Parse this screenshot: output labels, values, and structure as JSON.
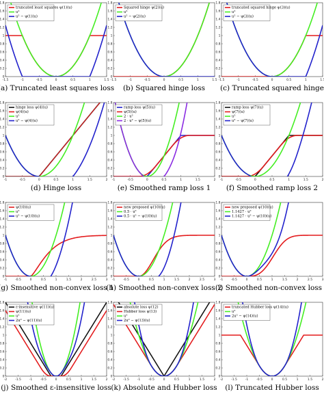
{
  "colors": {
    "red": "#e31a1c",
    "green": "#44ee22",
    "blue": "#2222cc",
    "black": "#111111",
    "purple": "#8a2be2",
    "dark": "#0b3d4f"
  },
  "chart_data": [
    {
      "type": "line",
      "caption": "(a) Truncated least squares loss",
      "xlim": [
        -1.5,
        1.5
      ],
      "ylim": [
        0,
        1.8
      ],
      "xticks": [
        -1.5,
        -1,
        -0.5,
        0,
        0.5,
        1,
        1.5
      ],
      "legend": [
        "truncated least squares ψ(1)(u)",
        "u²",
        "u² − ψ(1)(u)"
      ],
      "series": [
        {
          "name": "truncated least squares ψ(1)(u)",
          "color": "#e31a1c",
          "fn": "tls",
          "params": {
            "t": 1
          }
        },
        {
          "name": "u²",
          "color": "#44ee22",
          "fn": "sq"
        },
        {
          "name": "u² − ψ(1)(u)",
          "color": "#2222cc",
          "fn": "sqmtls",
          "params": {
            "t": 1
          }
        }
      ]
    },
    {
      "type": "line",
      "caption": "(b) Squared hinge loss",
      "xlim": [
        -1.5,
        1.5
      ],
      "ylim": [
        0,
        1.8
      ],
      "xticks": [
        -1.5,
        -1,
        -0.5,
        0,
        0.5,
        1,
        1.5
      ],
      "legend": [
        "Squared hinge ψ(2)(u)",
        "u²",
        "u² − ψ(2)(u)"
      ],
      "series": [
        {
          "name": "Squared hinge ψ(2)(u)",
          "color": "#e31a1c",
          "fn": "sqhinge"
        },
        {
          "name": "u²",
          "color": "#44ee22",
          "fn": "sq"
        },
        {
          "name": "u² − ψ(2)(u)",
          "color": "#2222cc",
          "fn": "sqmsqhinge"
        }
      ]
    },
    {
      "type": "line",
      "caption": "(c) Truncated squared hinge",
      "xlim": [
        -1.5,
        1.5
      ],
      "ylim": [
        0,
        1.8
      ],
      "xticks": [
        -1.5,
        -1,
        -0.5,
        0,
        0.5,
        1,
        1.5
      ],
      "legend": [
        "truncated squared hinge ψ(3)(u)",
        "u²",
        "u² − ψ(3)(u)"
      ],
      "series": [
        {
          "name": "truncated squared hinge ψ(3)(u)",
          "color": "#e31a1c",
          "fn": "tsqhinge"
        },
        {
          "name": "u²",
          "color": "#44ee22",
          "fn": "sq"
        },
        {
          "name": "u² − ψ(3)(u)",
          "color": "#2222cc",
          "fn": "sqmtsqhinge"
        }
      ]
    },
    {
      "type": "line",
      "caption": "(d) Hinge loss",
      "xlim": [
        -1,
        2
      ],
      "ylim": [
        0,
        1.8
      ],
      "xticks": [
        -1,
        -0.5,
        0,
        0.5,
        1,
        1.5,
        2
      ],
      "legend": [
        "hinge loss ψ(4)(u)",
        "ψ(4)(u)",
        "u²",
        "u² − ψ(4)(u)"
      ],
      "series": [
        {
          "name": "hinge loss ψ(4)(u)",
          "color": "#111111",
          "fn": "hinge"
        },
        {
          "name": "ψ(4)(u)",
          "color": "#e31a1c",
          "fn": "hinge",
          "width": 1.1
        },
        {
          "name": "u²",
          "color": "#44ee22",
          "fn": "sq"
        },
        {
          "name": "u² − ψ(4)(u)",
          "color": "#2222cc",
          "fn": "sqmhinge"
        }
      ]
    },
    {
      "type": "line",
      "caption": "(e) Smoothed ramp loss 1",
      "xlim": [
        -1,
        2
      ],
      "ylim": [
        0,
        1.8
      ],
      "xticks": [
        -1,
        -0.5,
        0,
        0.5,
        1,
        1.5,
        2
      ],
      "legend": [
        "ramp loss ψ(5)(u)",
        "ψ(5)(u)",
        "2 · u²",
        "2 · u² − ψ(5)(u)"
      ],
      "series": [
        {
          "name": "ramp loss ψ(5)(u)",
          "color": "#2222cc",
          "fn": "ramp",
          "params": {
            "b": 1
          }
        },
        {
          "name": "ψ(5)(u)",
          "color": "#e31a1c",
          "fn": "smoothramp",
          "params": {
            "b": 1
          }
        },
        {
          "name": "2 · u²",
          "color": "#44ee22",
          "fn": "sq2"
        },
        {
          "name": "2 · u² − ψ(5)(u)",
          "color": "#8a2be2",
          "fn": "sq2mramp"
        }
      ]
    },
    {
      "type": "line",
      "caption": "(f) Smoothed ramp loss 2",
      "xlim": [
        -1,
        2
      ],
      "ylim": [
        0,
        1.8
      ],
      "xticks": [
        -1,
        -0.5,
        0,
        0.5,
        1,
        1.5,
        2
      ],
      "legend": [
        "ramp loss ψ(7)(u)",
        "ψ(7)(u)",
        "u²",
        "u² − ψ(7)(u)"
      ],
      "series": [
        {
          "name": "ramp loss ψ(7)(u)",
          "color": "#111111",
          "fn": "ramp",
          "params": {
            "b": 1
          }
        },
        {
          "name": "ψ(7)(u)",
          "color": "#e31a1c",
          "fn": "smoothramp",
          "params": {
            "b": 1
          }
        },
        {
          "name": "u²",
          "color": "#44ee22",
          "fn": "sq"
        },
        {
          "name": "u² − ψ(7)(u)",
          "color": "#2222cc",
          "fn": "sqmsmoothramp"
        }
      ]
    },
    {
      "type": "line",
      "caption": "(g) Smoothed non-convex loss 1",
      "xlim": [
        -1,
        3
      ],
      "ylim": [
        0,
        1.8
      ],
      "xticks": [
        -1,
        -0.5,
        0,
        0.5,
        1,
        1.5,
        2,
        2.5,
        3
      ],
      "legend": [
        "ψ(10)(u)",
        "u²",
        "u² − ψ(10)(u)"
      ],
      "series": [
        {
          "name": "ψ(10)(u)",
          "color": "#e31a1c",
          "fn": "ncv",
          "params": {
            "s": 0.8,
            "p": 1.3,
            "c": 1
          }
        },
        {
          "name": "u²",
          "color": "#44ee22",
          "fn": "sq"
        },
        {
          "name": "u² − ψ(10)(u)",
          "color": "#2222cc",
          "fn": "sqmncv",
          "params": {
            "s": 0.8,
            "p": 1.3,
            "c": 1
          }
        }
      ]
    },
    {
      "type": "line",
      "caption": "(h) Smoothed non-convex loss 2",
      "xlim": [
        -1,
        3
      ],
      "ylim": [
        0,
        1.8
      ],
      "xticks": [
        -1,
        -0.5,
        0,
        0.5,
        1,
        1.5,
        2,
        2.5,
        3
      ],
      "legend": [
        "new proposed ψ(10)(u)",
        "0.5 · u²",
        "0.5 · u² − ψ(10)(u)"
      ],
      "series": [
        {
          "name": "new proposed ψ(10)(u)",
          "color": "#e31a1c",
          "fn": "ncv",
          "params": {
            "s": 0.8,
            "p": 2,
            "c": 1
          }
        },
        {
          "name": "0.5 · u²",
          "color": "#44ee22",
          "fn": "sq"
        },
        {
          "name": "0.5 · u² − ψ(10)(u)",
          "color": "#2222cc",
          "fn": "sqmncv",
          "params": {
            "s": 0.8,
            "p": 2,
            "c": 1
          }
        }
      ]
    },
    {
      "type": "line",
      "caption": "(i) Smoothed non-convex loss 3",
      "xlim": [
        -1,
        3
      ],
      "ylim": [
        0,
        1.8
      ],
      "xticks": [
        -1,
        -0.5,
        0,
        0.5,
        1,
        1.5,
        2,
        2.5,
        3
      ],
      "legend": [
        "new proposed ψ(10)(u)",
        "1.1427 · u²",
        "1.1427 · u² − ψ(10)(u)"
      ],
      "series": [
        {
          "name": "new proposed ψ(10)(u)",
          "color": "#e31a1c",
          "fn": "ncv",
          "params": {
            "s": 1.2,
            "p": 3,
            "c": 1
          }
        },
        {
          "name": "1.1427 · u²",
          "color": "#44ee22",
          "fn": "sq"
        },
        {
          "name": "1.1427 · u² − ψ(10)(u)",
          "color": "#2222cc",
          "fn": "sqmncv",
          "params": {
            "s": 1.2,
            "p": 3,
            "c": 1
          }
        }
      ]
    },
    {
      "type": "line",
      "caption": "(j) Smoothed ε-insensitive loss",
      "xlim": [
        -2,
        2
      ],
      "ylim": [
        0,
        1.8
      ],
      "xticks": [
        -2,
        -1.5,
        -1,
        -0.5,
        0,
        0.5,
        1,
        1.5,
        2
      ],
      "legend": [
        "ε-insensitive ψ(11)(u)",
        "ψ(11)(u)",
        "u²",
        "2u² − ψ(11)(u)"
      ],
      "series": [
        {
          "name": "ε-insensitive ψ(11)(u)",
          "color": "#111111",
          "fn": "epsins",
          "params": {
            "e": 0.2
          }
        },
        {
          "name": "ψ(11)(u)",
          "color": "#e31a1c",
          "fn": "smootheps",
          "params": {
            "e": 0.2
          }
        },
        {
          "name": "u²",
          "color": "#44ee22",
          "fn": "sq2"
        },
        {
          "name": "2u² − ψ(11)(u)",
          "color": "#2222cc",
          "fn": "sq2meps",
          "params": {
            "e": 0.2
          }
        }
      ]
    },
    {
      "type": "line",
      "caption": "(k) Absolute and Hubber loss",
      "xlim": [
        -2,
        2
      ],
      "ylim": [
        0,
        1.8
      ],
      "xticks": [
        -2,
        -1.5,
        -1,
        -0.5,
        0,
        0.5,
        1,
        1.5,
        2
      ],
      "legend": [
        "absolute loss ψ(12)",
        "Hubber loss ψ(13)",
        "u²",
        "2u² − ψ(13)(u)"
      ],
      "series": [
        {
          "name": "absolute loss ψ(12)",
          "color": "#111111",
          "fn": "abs"
        },
        {
          "name": "Hubber loss ψ(13)",
          "color": "#e31a1c",
          "fn": "huber",
          "params": {
            "d": 0.5
          }
        },
        {
          "name": "u²",
          "color": "#44ee22",
          "fn": "sq"
        },
        {
          "name": "2u² − ψ(13)(u)",
          "color": "#2222cc",
          "fn": "sq2mhuber",
          "params": {
            "d": 0.5
          }
        }
      ]
    },
    {
      "type": "line",
      "caption": "(l) Truncated Hubber loss",
      "xlim": [
        -2,
        2
      ],
      "ylim": [
        0,
        1.8
      ],
      "xticks": [
        -2,
        -1.5,
        -1,
        -0.5,
        0,
        0.5,
        1,
        1.5,
        2
      ],
      "legend": [
        "truncated Hubber loss ψ(14)(u)",
        "u²",
        "2u² − ψ(14)(u)"
      ],
      "series": [
        {
          "name": "truncated Hubber loss ψ(14)(u)",
          "color": "#e31a1c",
          "fn": "thuber",
          "params": {
            "d": 0.5,
            "cap": 1
          }
        },
        {
          "name": "u²",
          "color": "#44ee22",
          "fn": "sq"
        },
        {
          "name": "2u² − ψ(14)(u)",
          "color": "#2222cc",
          "fn": "sq2mthuber",
          "params": {
            "d": 0.5,
            "cap": 1
          }
        }
      ]
    }
  ]
}
